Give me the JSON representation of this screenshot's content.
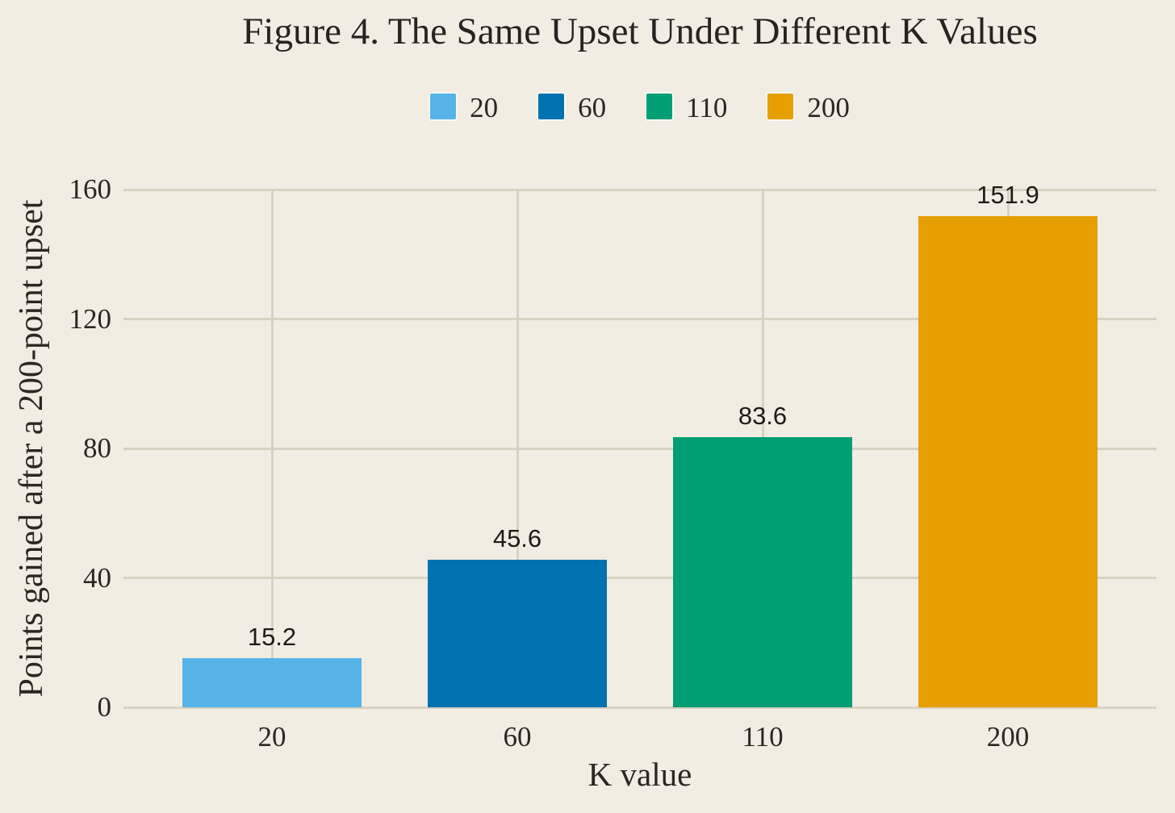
{
  "colors": {
    "background": "#f2ede3",
    "grid": "#d8d2c2",
    "text": "#2b2721"
  },
  "chart_data": {
    "type": "bar",
    "title": "Figure 4. The Same Upset Under Different K Values",
    "xlabel": "K value",
    "ylabel": "Points gained after a 200-point upset",
    "categories": [
      "20",
      "60",
      "110",
      "200"
    ],
    "values": [
      15.2,
      45.6,
      83.6,
      151.9
    ],
    "value_labels": [
      "15.2",
      "45.6",
      "83.6",
      "151.9"
    ],
    "bar_colors": [
      "#56b4e9",
      "#0072b2",
      "#009e73",
      "#e69f00"
    ],
    "ylim": [
      0,
      160
    ],
    "yticks": [
      0,
      40,
      80,
      120,
      160
    ],
    "grid": true,
    "legend_position": "top-center",
    "legend": [
      {
        "label": "20",
        "color": "#56b4e9"
      },
      {
        "label": "60",
        "color": "#0072b2"
      },
      {
        "label": "110",
        "color": "#009e73"
      },
      {
        "label": "200",
        "color": "#e69f00"
      }
    ]
  }
}
